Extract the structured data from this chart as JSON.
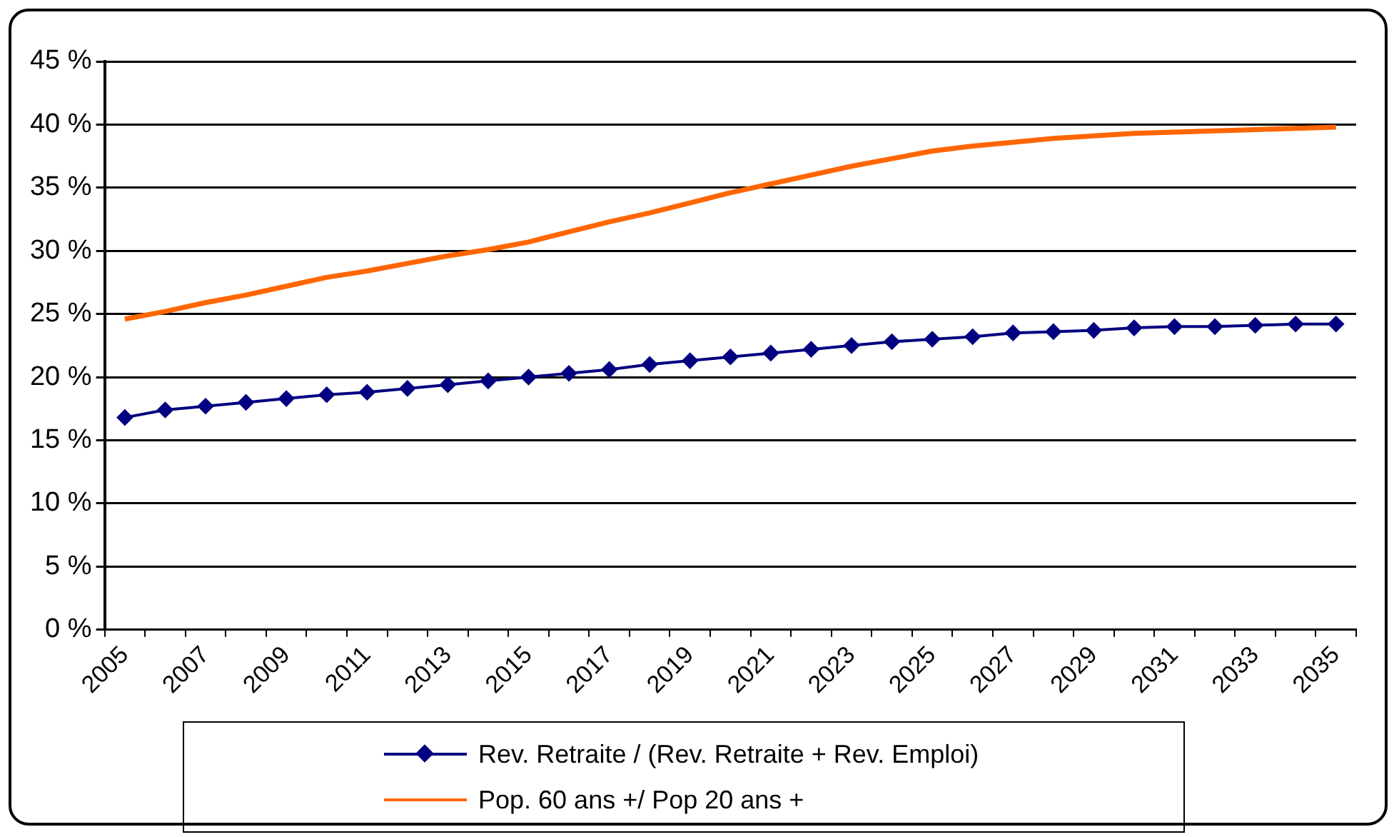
{
  "chart_data": {
    "type": "line",
    "categories": [
      "2005",
      null,
      "2007",
      null,
      "2009",
      null,
      "2011",
      null,
      "2013",
      null,
      "2015",
      null,
      "2017",
      null,
      "2019",
      null,
      "2021",
      null,
      "2023",
      null,
      "2025",
      null,
      "2027",
      null,
      "2029",
      null,
      "2031",
      null,
      "2033",
      null,
      "2035"
    ],
    "series": [
      {
        "name": "Rev. Retraite / (Rev. Retraite + Rev. Emploi)",
        "color": "#000080",
        "marker": "diamond",
        "values": [
          16.8,
          17.4,
          17.7,
          18.0,
          18.3,
          18.6,
          18.8,
          19.1,
          19.4,
          19.7,
          20.0,
          20.3,
          20.6,
          21.0,
          21.3,
          21.6,
          21.9,
          22.2,
          22.5,
          22.8,
          23.0,
          23.2,
          23.5,
          23.6,
          23.7,
          23.9,
          24.0,
          24.0,
          24.1,
          24.2,
          24.2
        ]
      },
      {
        "name": "Pop. 60 ans +/ Pop 20 ans +",
        "color": "#ff6600",
        "marker": "none",
        "values": [
          24.6,
          25.2,
          25.9,
          26.5,
          27.2,
          27.9,
          28.4,
          29.0,
          29.6,
          30.1,
          30.7,
          31.5,
          32.3,
          33.0,
          33.8,
          34.6,
          35.3,
          36.0,
          36.7,
          37.3,
          37.9,
          38.3,
          38.6,
          38.9,
          39.1,
          39.3,
          39.4,
          39.5,
          39.6,
          39.7,
          39.8
        ]
      }
    ],
    "ylim": [
      0,
      45
    ],
    "yticks": [
      {
        "value": 0,
        "label": "0 %"
      },
      {
        "value": 5,
        "label": "5 %"
      },
      {
        "value": 10,
        "label": "10 %"
      },
      {
        "value": 15,
        "label": "15 %"
      },
      {
        "value": 20,
        "label": "20 %"
      },
      {
        "value": 25,
        "label": "25 %"
      },
      {
        "value": 30,
        "label": "30 %"
      },
      {
        "value": 35,
        "label": "35 %"
      },
      {
        "value": 40,
        "label": "40 %"
      },
      {
        "value": 45,
        "label": "45 %"
      }
    ],
    "grid": "y",
    "legend": "bottom"
  }
}
